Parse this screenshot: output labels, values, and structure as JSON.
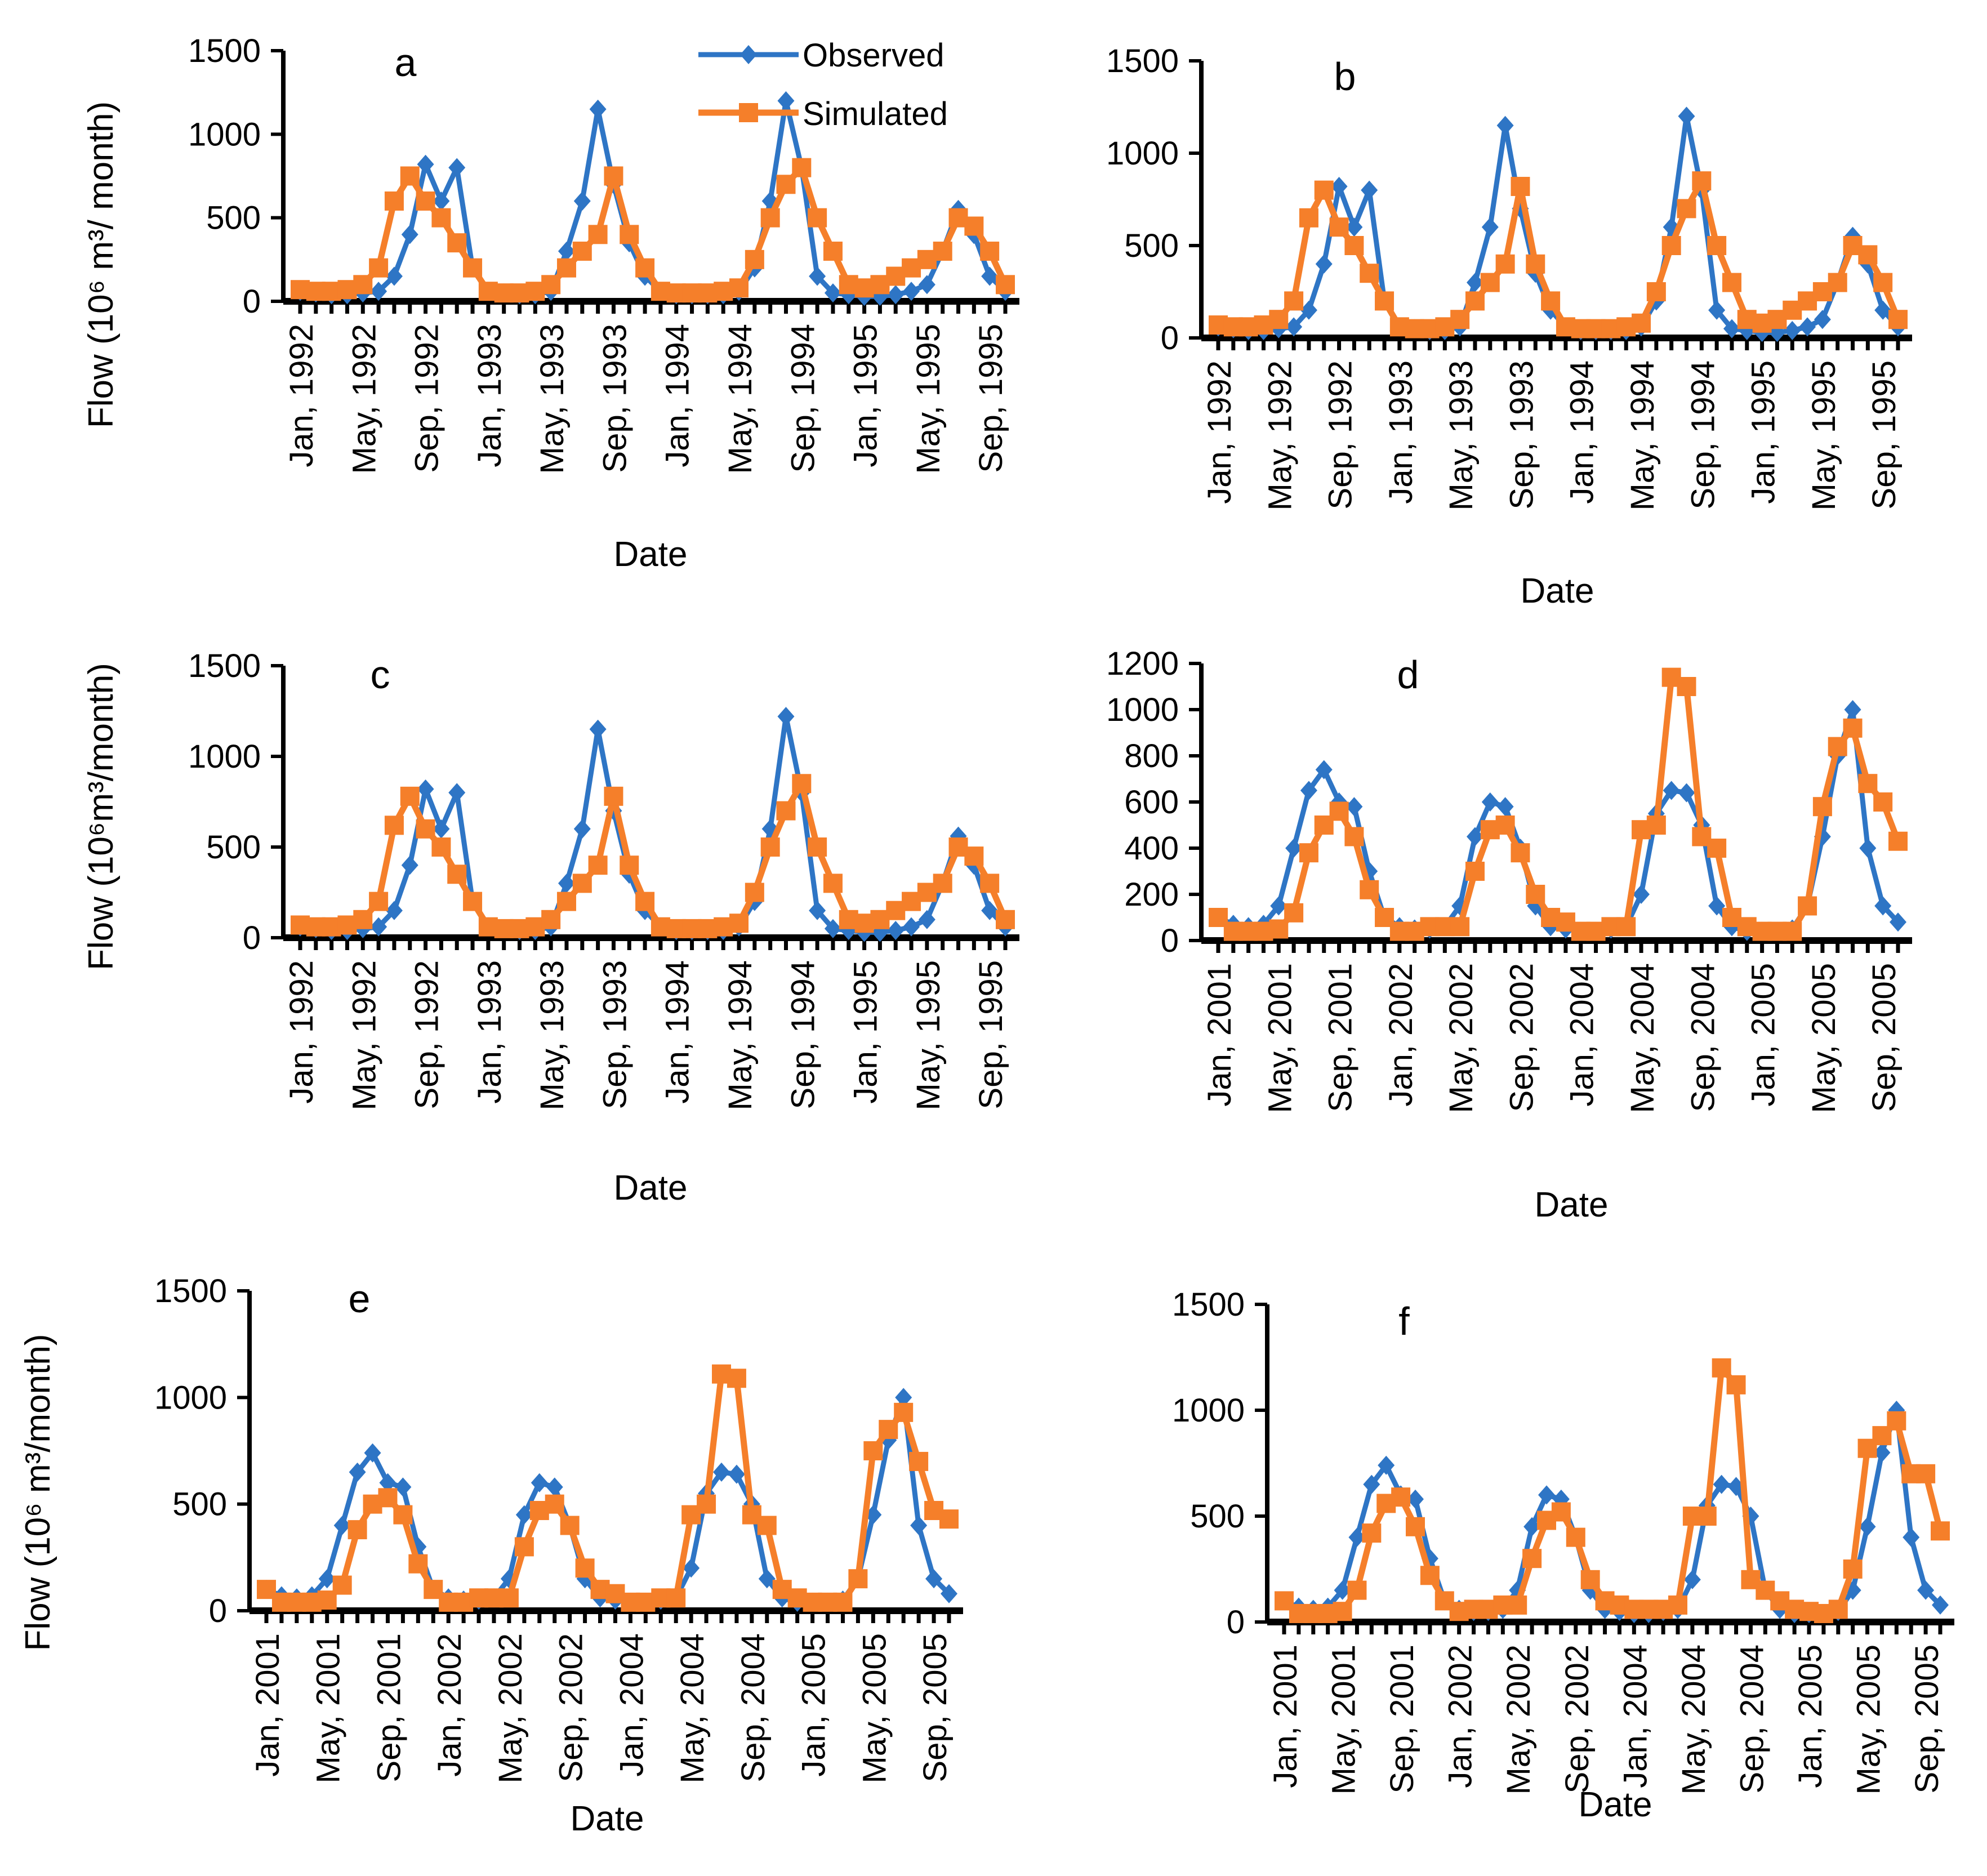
{
  "colors": {
    "observed": "#2E75C5",
    "simulated": "#F57F2A",
    "axis": "#000000"
  },
  "legend": {
    "observed": "Observed",
    "simulated": "Simulated"
  },
  "chart_data": [
    {
      "type": "line",
      "label": "a",
      "ylabel": "Flow (10⁶ m³/ month)",
      "xlabel": "Date",
      "ylim": [
        0,
        1500
      ],
      "yticks": [
        0,
        500,
        1000,
        1500
      ],
      "xticks": [
        "Jan, 1992",
        "May, 1992",
        "Sep, 1992",
        "Jan, 1993",
        "May, 1993",
        "Sep, 1993",
        "Jan, 1994",
        "May, 1994",
        "Sep, 1994",
        "Jan, 1995",
        "May, 1995",
        "Sep, 1995"
      ],
      "series": [
        {
          "name": "Observed",
          "values": [
            60,
            50,
            40,
            40,
            50,
            60,
            150,
            400,
            820,
            600,
            800,
            200,
            60,
            50,
            40,
            40,
            60,
            300,
            600,
            1150,
            700,
            350,
            150,
            60,
            40,
            40,
            40,
            40,
            60,
            200,
            600,
            1200,
            800,
            150,
            50,
            40,
            30,
            30,
            40,
            60,
            100,
            300,
            550,
            400,
            150,
            60
          ]
        },
        {
          "name": "Simulated",
          "values": [
            70,
            60,
            60,
            70,
            100,
            200,
            600,
            750,
            600,
            500,
            350,
            200,
            60,
            50,
            50,
            60,
            100,
            200,
            300,
            400,
            750,
            400,
            200,
            60,
            50,
            50,
            50,
            60,
            80,
            250,
            500,
            700,
            800,
            500,
            300,
            100,
            80,
            100,
            150,
            200,
            250,
            300,
            500,
            450,
            300,
            100
          ]
        }
      ]
    },
    {
      "type": "line",
      "label": "b",
      "ylabel": "",
      "xlabel": "Date",
      "ylim": [
        0,
        1500
      ],
      "yticks": [
        0,
        500,
        1000,
        1500
      ],
      "xticks": [
        "Jan, 1992",
        "May, 1992",
        "Sep, 1992",
        "Jan, 1993",
        "May, 1993",
        "Sep, 1993",
        "Jan, 1994",
        "May, 1994",
        "Sep, 1994",
        "Jan, 1995",
        "May, 1995",
        "Sep, 1995"
      ],
      "series": [
        {
          "name": "Observed",
          "values": [
            60,
            50,
            40,
            40,
            50,
            60,
            150,
            400,
            820,
            600,
            800,
            200,
            60,
            50,
            40,
            40,
            60,
            300,
            600,
            1150,
            700,
            350,
            150,
            60,
            40,
            40,
            40,
            40,
            60,
            200,
            600,
            1200,
            800,
            150,
            50,
            40,
            30,
            30,
            40,
            60,
            100,
            300,
            550,
            400,
            150,
            60
          ]
        },
        {
          "name": "Simulated",
          "values": [
            70,
            60,
            60,
            70,
            100,
            200,
            650,
            800,
            600,
            500,
            350,
            200,
            60,
            50,
            50,
            60,
            100,
            200,
            300,
            400,
            820,
            400,
            200,
            60,
            50,
            50,
            50,
            60,
            80,
            250,
            500,
            700,
            850,
            500,
            300,
            100,
            80,
            100,
            150,
            200,
            250,
            300,
            500,
            450,
            300,
            100
          ]
        }
      ]
    },
    {
      "type": "line",
      "label": "c",
      "ylabel": "Flow (10⁶m³/month)",
      "xlabel": "Date",
      "ylim": [
        0,
        1500
      ],
      "yticks": [
        0,
        500,
        1000,
        1500
      ],
      "xticks": [
        "Jan, 1992",
        "May, 1992",
        "Sep, 1992",
        "Jan, 1993",
        "May, 1993",
        "Sep, 1993",
        "Jan, 1994",
        "May, 1994",
        "Sep, 1994",
        "Jan, 1995",
        "May, 1995",
        "Sep, 1995"
      ],
      "series": [
        {
          "name": "Observed",
          "values": [
            60,
            50,
            40,
            40,
            50,
            60,
            150,
            400,
            820,
            600,
            800,
            200,
            60,
            50,
            40,
            40,
            60,
            300,
            600,
            1150,
            700,
            350,
            150,
            60,
            40,
            40,
            40,
            40,
            60,
            200,
            600,
            1220,
            800,
            150,
            50,
            40,
            30,
            30,
            40,
            60,
            100,
            300,
            560,
            400,
            150,
            60
          ]
        },
        {
          "name": "Simulated",
          "values": [
            70,
            60,
            60,
            70,
            100,
            200,
            620,
            780,
            600,
            500,
            350,
            200,
            60,
            50,
            50,
            60,
            100,
            200,
            300,
            400,
            780,
            400,
            200,
            60,
            50,
            50,
            50,
            60,
            80,
            250,
            500,
            700,
            850,
            500,
            300,
            100,
            80,
            100,
            150,
            200,
            250,
            300,
            500,
            450,
            300,
            100
          ]
        }
      ]
    },
    {
      "type": "line",
      "label": "d",
      "ylabel": "",
      "xlabel": "Date",
      "ylim": [
        0,
        1200
      ],
      "yticks": [
        0,
        200,
        400,
        600,
        800,
        1000,
        1200
      ],
      "xticks": [
        "Jan, 2001",
        "May, 2001",
        "Sep, 2001",
        "Jan, 2002",
        "May, 2002",
        "Sep, 2002",
        "Jan, 2004",
        "May, 2004",
        "Sep, 2004",
        "Jan, 2005",
        "May, 2005",
        "Sep, 2005"
      ],
      "series": [
        {
          "name": "Observed",
          "values": [
            100,
            70,
            60,
            70,
            150,
            400,
            650,
            740,
            600,
            580,
            300,
            100,
            60,
            50,
            50,
            60,
            150,
            450,
            600,
            580,
            400,
            150,
            60,
            50,
            40,
            40,
            50,
            60,
            200,
            550,
            650,
            640,
            500,
            150,
            60,
            40,
            40,
            40,
            50,
            150,
            450,
            800,
            1000,
            400,
            150,
            80
          ]
        },
        {
          "name": "Simulated",
          "values": [
            100,
            40,
            40,
            40,
            50,
            120,
            380,
            500,
            560,
            450,
            220,
            100,
            40,
            40,
            60,
            60,
            60,
            300,
            480,
            500,
            380,
            200,
            100,
            80,
            40,
            40,
            60,
            60,
            480,
            500,
            1140,
            1100,
            450,
            400,
            100,
            60,
            40,
            40,
            40,
            150,
            580,
            840,
            920,
            680,
            600,
            430
          ]
        }
      ]
    },
    {
      "type": "line",
      "label": "e",
      "ylabel": "Flow (10⁶ m³/month)",
      "xlabel": "Date",
      "ylim": [
        0,
        1500
      ],
      "yticks": [
        0,
        500,
        1000,
        1500
      ],
      "xticks": [
        "Jan, 2001",
        "May, 2001",
        "Sep, 2001",
        "Jan, 2002",
        "May, 2002",
        "Sep, 2002",
        "Jan, 2004",
        "May, 2004",
        "Sep, 2004",
        "Jan, 2005",
        "May, 2005",
        "Sep, 2005"
      ],
      "series": [
        {
          "name": "Observed",
          "values": [
            100,
            70,
            60,
            70,
            150,
            400,
            650,
            740,
            600,
            580,
            300,
            100,
            60,
            50,
            50,
            60,
            150,
            450,
            600,
            580,
            400,
            150,
            60,
            50,
            40,
            40,
            50,
            60,
            200,
            550,
            650,
            640,
            500,
            150,
            60,
            40,
            40,
            40,
            50,
            150,
            450,
            800,
            1000,
            400,
            150,
            80
          ]
        },
        {
          "name": "Simulated",
          "values": [
            100,
            40,
            40,
            40,
            50,
            120,
            380,
            500,
            530,
            450,
            220,
            100,
            40,
            40,
            60,
            60,
            60,
            300,
            470,
            500,
            400,
            200,
            100,
            80,
            40,
            40,
            60,
            60,
            450,
            500,
            1110,
            1090,
            450,
            400,
            100,
            60,
            40,
            40,
            40,
            150,
            750,
            850,
            930,
            700,
            470,
            430
          ]
        }
      ]
    },
    {
      "type": "line",
      "label": "f",
      "ylabel": "",
      "xlabel": "Date",
      "ylim": [
        0,
        1500
      ],
      "yticks": [
        0,
        500,
        1000,
        1500
      ],
      "xticks": [
        "Jan, 2001",
        "May, 2001",
        "Sep, 2001",
        "Jan, 2002",
        "May, 2002",
        "Sep, 2002",
        "Jan, 2004",
        "May, 2004",
        "Sep, 2004",
        "Jan, 2005",
        "May, 2005",
        "Sep, 2005"
      ],
      "series": [
        {
          "name": "Observed",
          "values": [
            100,
            70,
            60,
            70,
            150,
            400,
            650,
            740,
            600,
            580,
            300,
            100,
            60,
            50,
            50,
            60,
            150,
            450,
            600,
            580,
            400,
            150,
            60,
            50,
            40,
            40,
            50,
            60,
            200,
            550,
            650,
            640,
            500,
            150,
            60,
            40,
            40,
            40,
            50,
            150,
            450,
            800,
            1000,
            400,
            150,
            80
          ]
        },
        {
          "name": "Simulated",
          "values": [
            100,
            40,
            40,
            40,
            50,
            150,
            420,
            560,
            590,
            450,
            220,
            100,
            50,
            60,
            60,
            80,
            80,
            300,
            480,
            520,
            400,
            200,
            100,
            80,
            60,
            60,
            60,
            80,
            500,
            500,
            1200,
            1120,
            200,
            150,
            100,
            60,
            50,
            40,
            60,
            250,
            820,
            880,
            950,
            700,
            700,
            430
          ]
        }
      ]
    }
  ]
}
